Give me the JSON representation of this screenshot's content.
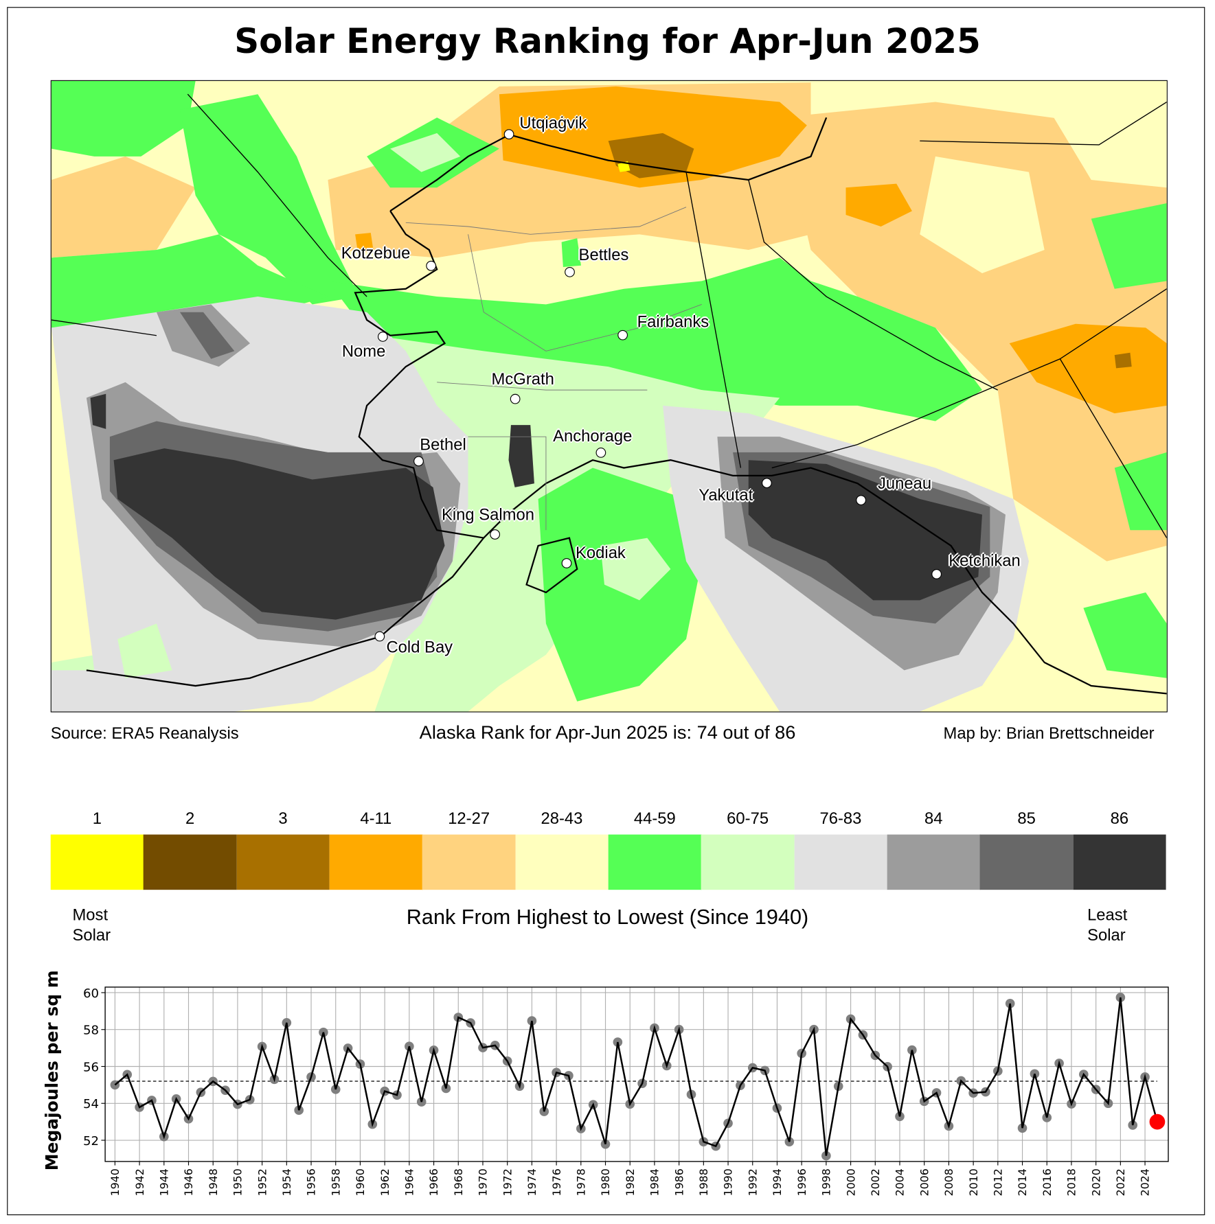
{
  "title": "Solar Energy Ranking for Apr-Jun 2025",
  "map": {
    "cities": [
      {
        "name": "Utqiaġvik"
      },
      {
        "name": "Kotzebue"
      },
      {
        "name": "Bettles"
      },
      {
        "name": "Nome"
      },
      {
        "name": "Fairbanks"
      },
      {
        "name": "McGrath"
      },
      {
        "name": "Anchorage"
      },
      {
        "name": "Bethel"
      },
      {
        "name": "King Salmon"
      },
      {
        "name": "Kodiak"
      },
      {
        "name": "Cold Bay"
      },
      {
        "name": "Yakutat"
      },
      {
        "name": "Juneau"
      },
      {
        "name": "Ketchikan"
      }
    ]
  },
  "footer": {
    "source": "Source: ERA5 Reanalysis",
    "rank_text": "Alaska Rank for Apr-Jun 2025 is: 74 out of 86",
    "credit": "Map by: Brian Brettschneider"
  },
  "colorbar": {
    "bins": [
      {
        "label": "1",
        "color": "#ffff00"
      },
      {
        "label": "2",
        "color": "#734c00"
      },
      {
        "label": "3",
        "color": "#a87000"
      },
      {
        "label": "4-11",
        "color": "#ffaa00"
      },
      {
        "label": "12-27",
        "color": "#ffd37f"
      },
      {
        "label": "28-43",
        "color": "#ffffbe"
      },
      {
        "label": "44-59",
        "color": "#55ff55"
      },
      {
        "label": "60-75",
        "color": "#d3ffbe"
      },
      {
        "label": "76-83",
        "color": "#e1e1e1"
      },
      {
        "label": "84",
        "color": "#9c9c9c"
      },
      {
        "label": "85",
        "color": "#686868"
      },
      {
        "label": "86",
        "color": "#343434"
      }
    ],
    "left_note": "Most\nSolar",
    "right_note": "Least\nSolar",
    "caption": "Rank From Highest to Lowest (Since 1940)"
  },
  "chart_data": {
    "type": "line",
    "title": "",
    "xlabel": "",
    "ylabel": "Megajoules per sq m",
    "xlim": [
      1939.2,
      2025.9
    ],
    "ylim": [
      50.85,
      60.3
    ],
    "yticks": [
      52,
      54,
      56,
      58,
      60
    ],
    "xticks": [
      1940,
      1942,
      1944,
      1946,
      1948,
      1950,
      1952,
      1954,
      1956,
      1958,
      1960,
      1962,
      1964,
      1966,
      1968,
      1970,
      1972,
      1974,
      1976,
      1978,
      1980,
      1982,
      1984,
      1986,
      1988,
      1990,
      1992,
      1994,
      1996,
      1998,
      2000,
      2002,
      2004,
      2006,
      2008,
      2010,
      2012,
      2014,
      2016,
      2018,
      2020,
      2022,
      2024
    ],
    "grid": true,
    "mean": 55.2,
    "highlight_year": 2025,
    "colors": {
      "line": "#000000",
      "marker": "#7f7f7f",
      "highlight": "#ff0000",
      "grid": "#b0b0b0"
    },
    "x": [
      1940,
      1941,
      1942,
      1943,
      1944,
      1945,
      1946,
      1947,
      1948,
      1949,
      1950,
      1951,
      1952,
      1953,
      1954,
      1955,
      1956,
      1957,
      1958,
      1959,
      1960,
      1961,
      1962,
      1963,
      1964,
      1965,
      1966,
      1967,
      1968,
      1969,
      1970,
      1971,
      1972,
      1973,
      1974,
      1975,
      1976,
      1977,
      1978,
      1979,
      1980,
      1981,
      1982,
      1983,
      1984,
      1985,
      1986,
      1987,
      1988,
      1989,
      1990,
      1991,
      1992,
      1993,
      1994,
      1995,
      1996,
      1997,
      1998,
      1999,
      2000,
      2001,
      2002,
      2003,
      2004,
      2005,
      2006,
      2007,
      2008,
      2009,
      2010,
      2011,
      2012,
      2013,
      2014,
      2015,
      2016,
      2017,
      2018,
      2019,
      2020,
      2021,
      2022,
      2023,
      2024,
      2025
    ],
    "values": [
      55.0,
      55.56,
      53.79,
      54.16,
      52.2,
      54.24,
      53.16,
      54.6,
      55.19,
      54.71,
      53.95,
      54.2,
      57.08,
      55.3,
      58.37,
      53.63,
      55.43,
      57.85,
      54.76,
      56.99,
      56.13,
      52.87,
      54.66,
      54.45,
      57.09,
      54.08,
      56.88,
      54.81,
      58.66,
      58.36,
      57.02,
      57.14,
      56.29,
      54.93,
      58.47,
      53.56,
      55.67,
      55.5,
      52.63,
      53.93,
      51.79,
      57.32,
      53.96,
      55.08,
      58.08,
      56.04,
      58.0,
      54.48,
      51.92,
      51.68,
      52.92,
      54.97,
      55.93,
      55.78,
      53.74,
      51.92,
      56.71,
      58.0,
      51.16,
      54.93,
      58.57,
      57.71,
      56.6,
      55.99,
      53.29,
      56.89,
      54.11,
      54.57,
      52.77,
      55.22,
      54.56,
      54.62,
      55.75,
      59.41,
      52.66,
      55.6,
      53.23,
      56.17,
      53.97,
      55.57,
      54.75,
      54.0,
      59.74,
      52.82,
      55.43,
      53.0
    ]
  }
}
